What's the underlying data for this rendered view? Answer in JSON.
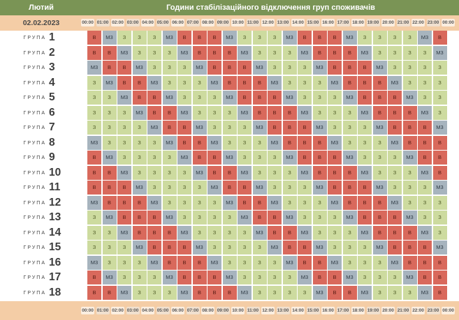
{
  "header": {
    "month": "Лютий",
    "title": "Години стабілізаційного відключення груп споживачів",
    "date": "02.02.2023"
  },
  "hours": [
    "00:00",
    "01:00",
    "02:00",
    "03:00",
    "04:00",
    "05:00",
    "06:00",
    "07:00",
    "08:00",
    "09:00",
    "10:00",
    "11:00",
    "12:00",
    "13:00",
    "14:00",
    "15:00",
    "16:00",
    "17:00",
    "18:00",
    "19:00",
    "20:00",
    "21:00",
    "22:00",
    "23:00",
    "00:00"
  ],
  "group_word": "ГРУПА",
  "status_labels": {
    "V": "В",
    "M": "М3",
    "Z": "З"
  },
  "colors": {
    "V": "#d9695c",
    "M": "#a7b4be",
    "Z": "#cddb9f"
  },
  "groups": [
    {
      "number": "1",
      "cells": [
        "V",
        "M",
        "Z",
        "Z",
        "Z",
        "M",
        "V",
        "V",
        "V",
        "M",
        "Z",
        "Z",
        "Z",
        "M",
        "V",
        "V",
        "V",
        "M",
        "Z",
        "Z",
        "Z",
        "Z",
        "M",
        "V"
      ]
    },
    {
      "number": "2",
      "cells": [
        "V",
        "V",
        "M",
        "Z",
        "Z",
        "Z",
        "M",
        "V",
        "V",
        "V",
        "M",
        "Z",
        "Z",
        "Z",
        "M",
        "V",
        "V",
        "V",
        "M",
        "Z",
        "Z",
        "Z",
        "Z",
        "M"
      ]
    },
    {
      "number": "3",
      "cells": [
        "M",
        "V",
        "V",
        "M",
        "Z",
        "Z",
        "Z",
        "M",
        "V",
        "V",
        "V",
        "M",
        "Z",
        "Z",
        "Z",
        "M",
        "V",
        "V",
        "V",
        "M",
        "Z",
        "Z",
        "Z",
        "Z"
      ]
    },
    {
      "number": "4",
      "cells": [
        "Z",
        "M",
        "V",
        "V",
        "M",
        "Z",
        "Z",
        "Z",
        "M",
        "V",
        "V",
        "V",
        "M",
        "Z",
        "Z",
        "Z",
        "M",
        "V",
        "V",
        "V",
        "M",
        "Z",
        "Z",
        "Z"
      ]
    },
    {
      "number": "5",
      "cells": [
        "Z",
        "Z",
        "M",
        "V",
        "V",
        "M",
        "Z",
        "Z",
        "Z",
        "M",
        "V",
        "V",
        "V",
        "M",
        "Z",
        "Z",
        "Z",
        "M",
        "V",
        "V",
        "V",
        "M",
        "Z",
        "Z"
      ]
    },
    {
      "number": "6",
      "cells": [
        "Z",
        "Z",
        "Z",
        "M",
        "V",
        "V",
        "M",
        "Z",
        "Z",
        "Z",
        "M",
        "V",
        "V",
        "V",
        "M",
        "Z",
        "Z",
        "Z",
        "M",
        "V",
        "V",
        "V",
        "M",
        "Z"
      ]
    },
    {
      "number": "7",
      "cells": [
        "Z",
        "Z",
        "Z",
        "Z",
        "M",
        "V",
        "V",
        "M",
        "Z",
        "Z",
        "Z",
        "M",
        "V",
        "V",
        "V",
        "M",
        "Z",
        "Z",
        "Z",
        "M",
        "V",
        "V",
        "V",
        "M"
      ]
    },
    {
      "number": "8",
      "cells": [
        "M",
        "Z",
        "Z",
        "Z",
        "Z",
        "M",
        "V",
        "V",
        "M",
        "Z",
        "Z",
        "Z",
        "M",
        "V",
        "V",
        "V",
        "M",
        "Z",
        "Z",
        "Z",
        "M",
        "V",
        "V",
        "V"
      ]
    },
    {
      "number": "9",
      "cells": [
        "V",
        "M",
        "Z",
        "Z",
        "Z",
        "Z",
        "M",
        "V",
        "V",
        "M",
        "Z",
        "Z",
        "Z",
        "M",
        "V",
        "V",
        "V",
        "M",
        "Z",
        "Z",
        "Z",
        "M",
        "V",
        "V"
      ]
    },
    {
      "number": "10",
      "cells": [
        "V",
        "V",
        "M",
        "Z",
        "Z",
        "Z",
        "Z",
        "M",
        "V",
        "V",
        "M",
        "Z",
        "Z",
        "Z",
        "M",
        "V",
        "V",
        "V",
        "M",
        "Z",
        "Z",
        "Z",
        "M",
        "V"
      ]
    },
    {
      "number": "11",
      "cells": [
        "V",
        "V",
        "V",
        "M",
        "Z",
        "Z",
        "Z",
        "Z",
        "M",
        "V",
        "V",
        "M",
        "Z",
        "Z",
        "Z",
        "M",
        "V",
        "V",
        "V",
        "M",
        "Z",
        "Z",
        "Z",
        "M"
      ]
    },
    {
      "number": "12",
      "cells": [
        "M",
        "V",
        "V",
        "V",
        "M",
        "Z",
        "Z",
        "Z",
        "Z",
        "M",
        "V",
        "V",
        "M",
        "Z",
        "Z",
        "Z",
        "M",
        "V",
        "V",
        "V",
        "M",
        "Z",
        "Z",
        "Z"
      ]
    },
    {
      "number": "13",
      "cells": [
        "Z",
        "M",
        "V",
        "V",
        "V",
        "M",
        "Z",
        "Z",
        "Z",
        "Z",
        "M",
        "V",
        "V",
        "M",
        "Z",
        "Z",
        "Z",
        "M",
        "V",
        "V",
        "V",
        "M",
        "Z",
        "Z"
      ]
    },
    {
      "number": "14",
      "cells": [
        "Z",
        "Z",
        "M",
        "V",
        "V",
        "V",
        "M",
        "Z",
        "Z",
        "Z",
        "Z",
        "M",
        "V",
        "V",
        "M",
        "Z",
        "Z",
        "Z",
        "M",
        "V",
        "V",
        "V",
        "M",
        "Z"
      ]
    },
    {
      "number": "15",
      "cells": [
        "Z",
        "Z",
        "Z",
        "M",
        "V",
        "V",
        "V",
        "M",
        "Z",
        "Z",
        "Z",
        "Z",
        "M",
        "V",
        "V",
        "M",
        "Z",
        "Z",
        "Z",
        "M",
        "V",
        "V",
        "V",
        "M"
      ]
    },
    {
      "number": "16",
      "cells": [
        "M",
        "Z",
        "Z",
        "Z",
        "M",
        "V",
        "V",
        "V",
        "M",
        "Z",
        "Z",
        "Z",
        "Z",
        "M",
        "V",
        "V",
        "M",
        "Z",
        "Z",
        "Z",
        "M",
        "V",
        "V",
        "V"
      ]
    },
    {
      "number": "17",
      "cells": [
        "V",
        "M",
        "Z",
        "Z",
        "Z",
        "M",
        "V",
        "V",
        "V",
        "M",
        "Z",
        "Z",
        "Z",
        "Z",
        "M",
        "V",
        "V",
        "M",
        "Z",
        "Z",
        "Z",
        "M",
        "V",
        "V"
      ]
    },
    {
      "number": "18",
      "cells": [
        "V",
        "V",
        "M",
        "Z",
        "Z",
        "Z",
        "M",
        "V",
        "V",
        "V",
        "M",
        "Z",
        "Z",
        "Z",
        "Z",
        "M",
        "V",
        "V",
        "M",
        "Z",
        "Z",
        "Z",
        "M",
        "V"
      ]
    }
  ]
}
